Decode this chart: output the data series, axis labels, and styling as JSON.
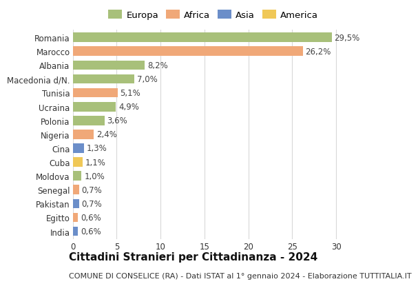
{
  "countries": [
    "Romania",
    "Marocco",
    "Albania",
    "Macedonia d/N.",
    "Tunisia",
    "Ucraina",
    "Polonia",
    "Nigeria",
    "Cina",
    "Cuba",
    "Moldova",
    "Senegal",
    "Pakistan",
    "Egitto",
    "India"
  ],
  "values": [
    29.5,
    26.2,
    8.2,
    7.0,
    5.1,
    4.9,
    3.6,
    2.4,
    1.3,
    1.1,
    1.0,
    0.7,
    0.7,
    0.6,
    0.6
  ],
  "labels": [
    "29,5%",
    "26,2%",
    "8,2%",
    "7,0%",
    "5,1%",
    "4,9%",
    "3,6%",
    "2,4%",
    "1,3%",
    "1,1%",
    "1,0%",
    "0,7%",
    "0,7%",
    "0,6%",
    "0,6%"
  ],
  "colors": [
    "#a8c07a",
    "#f0a878",
    "#a8c07a",
    "#a8c07a",
    "#f0a878",
    "#a8c07a",
    "#a8c07a",
    "#f0a878",
    "#6b8ec9",
    "#f0c857",
    "#a8c07a",
    "#f0a878",
    "#6b8ec9",
    "#f0a878",
    "#6b8ec9"
  ],
  "legend_labels": [
    "Europa",
    "Africa",
    "Asia",
    "America"
  ],
  "legend_colors": [
    "#a8c07a",
    "#f0a878",
    "#6b8ec9",
    "#f0c857"
  ],
  "title": "Cittadini Stranieri per Cittadinanza - 2024",
  "subtitle": "COMUNE DI CONSELICE (RA) - Dati ISTAT al 1° gennaio 2024 - Elaborazione TUTTITALIA.IT",
  "xlim": [
    0,
    32
  ],
  "xticks": [
    0,
    5,
    10,
    15,
    20,
    25,
    30
  ],
  "bg_color": "#ffffff",
  "grid_color": "#d8d8d8",
  "bar_height": 0.68,
  "title_fontsize": 11,
  "subtitle_fontsize": 8,
  "tick_fontsize": 8.5,
  "label_fontsize": 8.5,
  "legend_fontsize": 9.5
}
